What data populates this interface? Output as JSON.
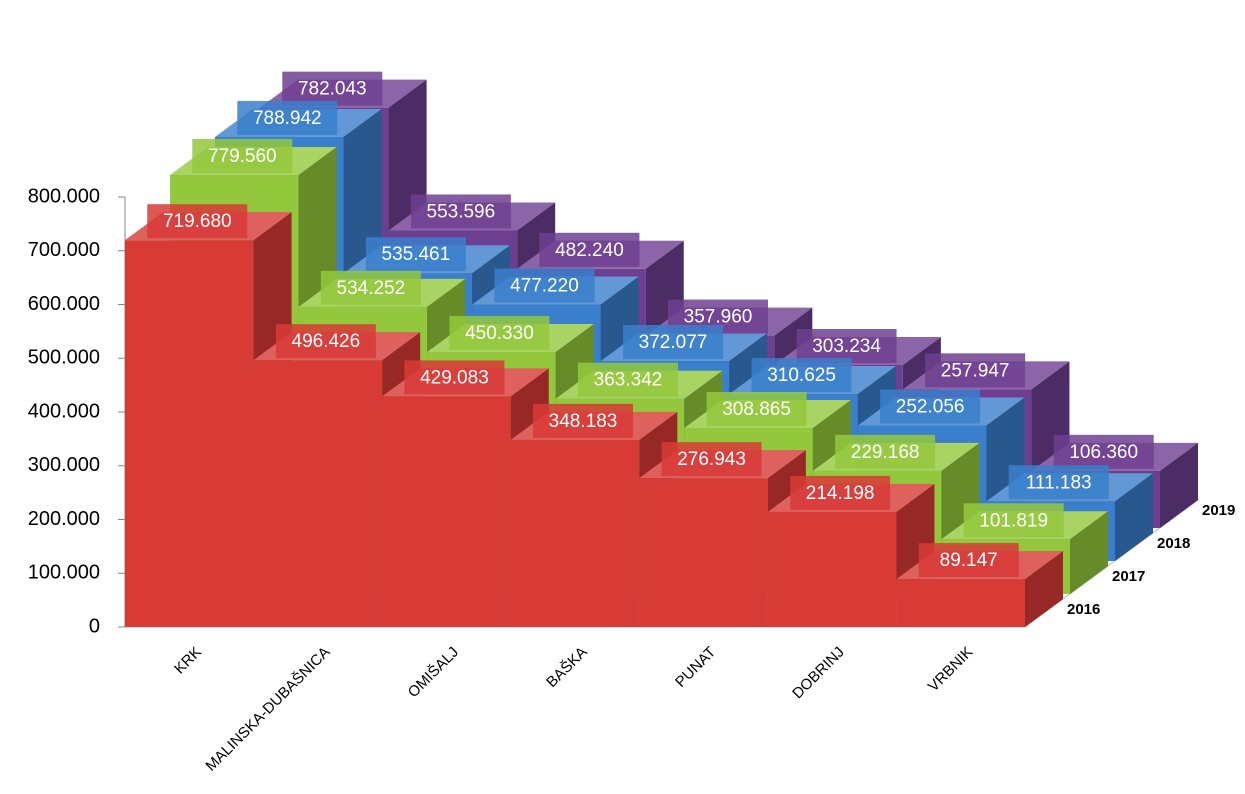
{
  "chart_data": {
    "type": "bar3d",
    "categories": [
      "KRK",
      "MALINSKA-DUBAŠNICA",
      "OMIŠALJ",
      "BAŠKA",
      "PUNAT",
      "DOBRINJ",
      "VRBNIK"
    ],
    "series": [
      {
        "name": "2016",
        "color": "#d83a36",
        "values": [
          719680,
          496426,
          429083,
          348183,
          276943,
          214198,
          89147
        ],
        "value_labels": [
          "719.680",
          "496.426",
          "429.083",
          "348.183",
          "276.943",
          "214.198",
          "89.147"
        ]
      },
      {
        "name": "2017",
        "color": "#94c83c",
        "values": [
          779560,
          534252,
          450330,
          363342,
          308865,
          229168,
          101819
        ],
        "value_labels": [
          "779.560",
          "534.252",
          "450.330",
          "363.342",
          "308.865",
          "229.168",
          "101.819"
        ]
      },
      {
        "name": "2018",
        "color": "#3a7fcb",
        "values": [
          788942,
          535461,
          477220,
          372077,
          310625,
          252056,
          111183
        ],
        "value_labels": [
          "788.942",
          "535.461",
          "477.220",
          "372.077",
          "310.625",
          "252.056",
          "111.183"
        ]
      },
      {
        "name": "2019",
        "color": "#6e3f91",
        "values": [
          782043,
          553596,
          482240,
          357960,
          303234,
          257947,
          106360
        ],
        "value_labels": [
          "782.043",
          "553.596",
          "482.240",
          "357.960",
          "303.234",
          "257.947",
          "106.360"
        ]
      }
    ],
    "ylim": [
      0,
      800000
    ],
    "yticks": [
      0,
      {
        "value": 100000,
        "label": "100.000"
      },
      {
        "value": 200000,
        "label": "200.000"
      },
      {
        "value": 300000,
        "label": "300.000"
      },
      {
        "value": 400000,
        "label": "400.000"
      },
      {
        "value": 500000,
        "label": "500.000"
      },
      {
        "value": 600000,
        "label": "600.000"
      },
      {
        "value": 700000,
        "label": "700.000"
      },
      {
        "value": 800000,
        "label": "800.000"
      }
    ]
  }
}
